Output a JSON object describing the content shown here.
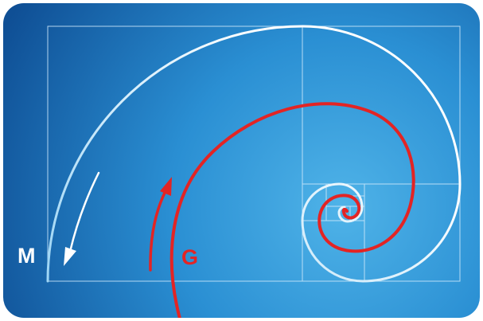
{
  "labels": {
    "m": "M",
    "g": "G"
  },
  "colors": {
    "bg_center": "#4fb3e8",
    "bg_mid": "#2a8fd3",
    "bg_edge": "#0f4f95",
    "grid_line": "#cfe9fb",
    "white_spiral": "#ffffff",
    "white_spiral_fade": "#9fd6f5",
    "red_spiral": "#e32424",
    "label_m": "#ffffff",
    "label_g": "#e32424"
  },
  "icons": {
    "white_arrow": "curved-arrow-down-icon",
    "red_arrow": "curved-arrow-up-icon"
  }
}
